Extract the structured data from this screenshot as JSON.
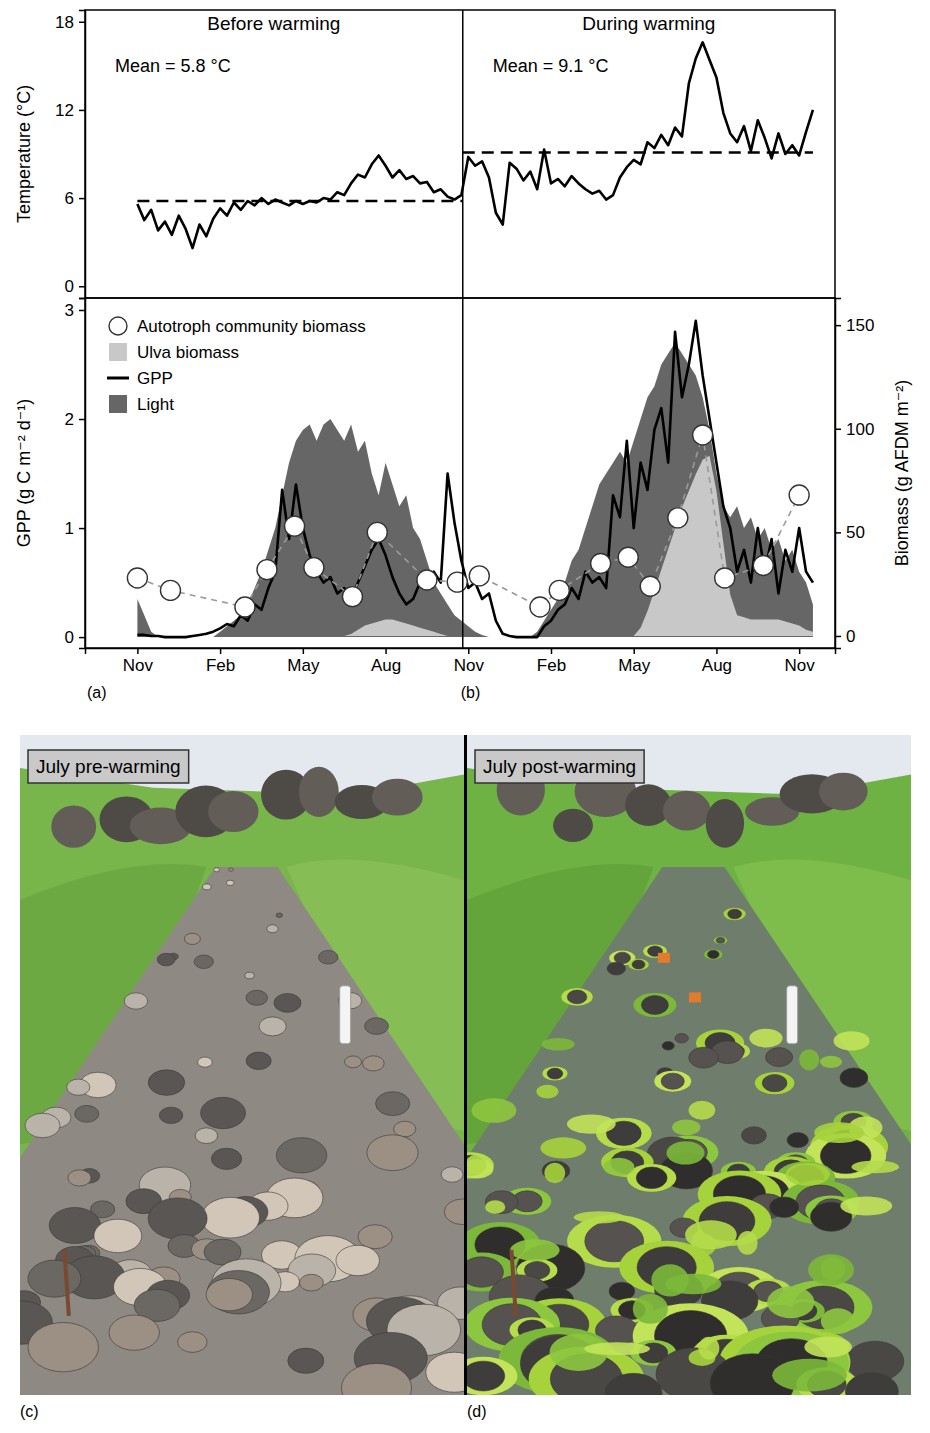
{
  "chart_data": [
    {
      "type": "line",
      "y_label": "Temperature (°C)",
      "tick_labels": "y",
      "x": [
        0,
        0.25,
        0.5,
        0.75,
        1,
        1.25,
        1.5,
        1.75,
        2,
        2.25,
        2.5,
        2.75,
        3,
        3.25,
        3.5,
        3.75,
        4,
        4.25,
        4.5,
        4.75,
        5,
        5.25,
        5.5,
        5.75,
        6,
        6.25,
        6.5,
        6.75,
        7,
        7.25,
        7.5,
        7.75,
        8,
        8.25,
        8.5,
        8.75,
        9,
        9.25,
        9.5,
        9.75,
        10,
        10.25,
        10.5,
        10.75,
        11,
        11.25,
        11.5,
        11.75,
        12,
        12.25,
        12.5,
        12.75,
        13,
        13.25,
        13.5,
        13.75,
        14,
        14.25,
        14.5,
        14.75,
        15,
        15.25,
        15.5,
        15.75,
        16,
        16.25,
        16.5,
        16.75,
        17,
        17.25,
        17.5,
        17.75,
        18,
        18.25,
        18.5,
        18.75,
        19,
        19.25,
        19.5,
        19.75,
        20,
        20.25,
        20.5,
        20.75,
        21,
        21.25,
        21.5,
        21.75,
        22,
        22.25,
        22.5,
        22.75,
        23,
        23.25,
        23.5,
        23.75,
        24,
        24.25,
        24.5
      ],
      "xlim": [
        -1.9,
        25.3
      ],
      "ylim": [
        -0.8,
        18.8
      ],
      "yticks": [
        0,
        6,
        12,
        18
      ],
      "warming_start": 11.8,
      "periods": [
        {
          "title": "Before warming",
          "mean_label": "Mean = 5.8 °C",
          "mean": 5.8,
          "x": [
            0,
            11.8
          ]
        },
        {
          "title": "During warming",
          "mean_label": "Mean = 9.1 °C",
          "mean": 9.1,
          "x": [
            11.8,
            24.5
          ]
        }
      ],
      "series": [
        {
          "color": "#000000",
          "values": [
            5.6,
            4.5,
            5.2,
            3.8,
            4.4,
            3.5,
            4.8,
            3.9,
            2.6,
            4.2,
            3.4,
            4.6,
            5.3,
            4.8,
            5.7,
            5.2,
            5.8,
            5.5,
            6.0,
            5.6,
            5.9,
            5.7,
            5.5,
            5.8,
            5.6,
            5.8,
            5.7,
            6.0,
            5.9,
            6.4,
            6.2,
            7.0,
            7.6,
            7.4,
            8.3,
            8.9,
            8.2,
            7.4,
            7.9,
            7.3,
            7.5,
            7.0,
            7.1,
            6.4,
            6.6,
            6.1,
            5.9,
            6.2,
            8.8,
            8.2,
            8.5,
            7.4,
            5.0,
            4.2,
            8.4,
            8.0,
            7.2,
            7.8,
            6.6,
            9.3,
            7.0,
            7.3,
            6.8,
            7.5,
            7.0,
            6.6,
            6.3,
            6.5,
            5.9,
            6.2,
            7.4,
            8.1,
            8.6,
            8.3,
            9.8,
            9.4,
            10.3,
            9.6,
            10.8,
            10.2,
            13.8,
            15.5,
            16.6,
            15.4,
            14.2,
            11.8,
            10.4,
            9.8,
            10.9,
            9.2,
            11.3,
            10.1,
            8.7,
            10.4,
            9.0,
            9.6,
            8.9,
            10.5,
            12.0
          ]
        }
      ]
    },
    {
      "type": "line",
      "y_label": "GPP (g C m⁻² d⁻¹)",
      "y2_label": "Biomass (g AFDM m⁻²)",
      "legend": "top-left",
      "panel_labels": [
        "(a)",
        "(b)"
      ],
      "x": [
        0,
        0.25,
        0.5,
        0.75,
        1,
        1.25,
        1.5,
        1.75,
        2,
        2.25,
        2.5,
        2.75,
        3,
        3.25,
        3.5,
        3.75,
        4,
        4.25,
        4.5,
        4.75,
        5,
        5.25,
        5.5,
        5.75,
        6,
        6.25,
        6.5,
        6.75,
        7,
        7.25,
        7.5,
        7.75,
        8,
        8.25,
        8.5,
        8.75,
        9,
        9.25,
        9.5,
        9.75,
        10,
        10.25,
        10.5,
        10.75,
        11,
        11.25,
        11.5,
        11.75,
        12,
        12.25,
        12.5,
        12.75,
        13,
        13.25,
        13.5,
        13.75,
        14,
        14.25,
        14.5,
        14.75,
        15,
        15.25,
        15.5,
        15.75,
        16,
        16.25,
        16.5,
        16.75,
        17,
        17.25,
        17.5,
        17.75,
        18,
        18.25,
        18.5,
        18.75,
        19,
        19.25,
        19.5,
        19.75,
        20,
        20.25,
        20.5,
        20.75,
        21,
        21.25,
        21.5,
        21.75,
        22,
        22.25,
        22.5,
        22.75,
        23,
        23.25,
        23.5,
        23.75,
        24,
        24.25,
        24.5
      ],
      "xlim": [
        -1.9,
        25.3
      ],
      "xticks": [
        {
          "value": 0,
          "label": "Nov"
        },
        {
          "value": 3,
          "label": "Feb"
        },
        {
          "value": 6,
          "label": "May"
        },
        {
          "value": 9,
          "label": "Aug"
        },
        {
          "value": 12,
          "label": "Nov"
        },
        {
          "value": 15,
          "label": "Feb"
        },
        {
          "value": 18,
          "label": "May"
        },
        {
          "value": 21,
          "label": "Aug"
        },
        {
          "value": 24,
          "label": "Nov"
        }
      ],
      "ylim": [
        -0.1,
        3.11
      ],
      "yticks": [
        0,
        1,
        2,
        3
      ],
      "y2lim": [
        -5.8,
        163.1
      ],
      "y2ticks": [
        0,
        50,
        100,
        150
      ],
      "series": [
        {
          "name": "Autotroph community biomass",
          "type": "scatter",
          "marker": "circle",
          "line_style": "dashed",
          "color": "#ffffff",
          "axis": "y2",
          "x": [
            0,
            1.2,
            3.9,
            4.7,
            5.7,
            6.4,
            7.8,
            8.7,
            10.5,
            11.6,
            12.4,
            14.6,
            15.3,
            16.8,
            17.8,
            18.6,
            19.6,
            20.5,
            21.3,
            22.7,
            24
          ],
          "values": [
            28,
            22,
            14,
            32,
            53,
            33,
            19,
            50,
            27,
            26,
            29,
            14,
            22,
            35,
            38,
            24,
            57,
            97,
            28,
            34,
            68
          ]
        },
        {
          "name": "Ulva biomass",
          "type": "area",
          "color": "#c8c8c8",
          "axis": "y2",
          "values": [
            0,
            0,
            0,
            0,
            0,
            0,
            0,
            0,
            0,
            0,
            0,
            0,
            0,
            0,
            0,
            0,
            0,
            0,
            0,
            0,
            0,
            0,
            0,
            0,
            0,
            0,
            0,
            0,
            0,
            0,
            0,
            1,
            3,
            5,
            6,
            7,
            8,
            8,
            7,
            6,
            5,
            4,
            3,
            2,
            1,
            0,
            0,
            0,
            0,
            0,
            0,
            0,
            0,
            0,
            0,
            0,
            0,
            0,
            0,
            0,
            0,
            0,
            0,
            0,
            0,
            0,
            0,
            0,
            0,
            0,
            0,
            0,
            0,
            4,
            12,
            22,
            32,
            42,
            52,
            62,
            70,
            78,
            85,
            87,
            70,
            45,
            20,
            10,
            9,
            8,
            8,
            8,
            8,
            8,
            7,
            6,
            5,
            3,
            2
          ]
        },
        {
          "name": "GPP",
          "type": "line",
          "color": "#000000",
          "values": [
            0.02,
            0.02,
            0.01,
            0.01,
            0,
            0,
            0,
            0,
            0.01,
            0.02,
            0.03,
            0.05,
            0.08,
            0.12,
            0.1,
            0.2,
            0.15,
            0.3,
            0.25,
            0.45,
            0.6,
            1.35,
            0.9,
            1.4,
            1.0,
            0.75,
            0.6,
            0.5,
            0.55,
            0.4,
            0.45,
            0.35,
            0.5,
            0.65,
            0.8,
            0.9,
            0.75,
            0.55,
            0.4,
            0.3,
            0.35,
            0.5,
            0.45,
            0.6,
            0.5,
            1.5,
            1.05,
            0.7,
            0.45,
            0.5,
            0.35,
            0.4,
            0.15,
            0.03,
            0.01,
            0,
            0,
            0,
            0,
            0.1,
            0.15,
            0.25,
            0.3,
            0.45,
            0.35,
            0.6,
            0.5,
            0.55,
            0.45,
            1.3,
            1.1,
            1.8,
            1.0,
            1.6,
            1.35,
            1.9,
            2.1,
            1.6,
            2.8,
            2.2,
            2.5,
            2.9,
            2.4,
            2.0,
            1.6,
            1.2,
            1.0,
            0.6,
            0.8,
            0.5,
            1.0,
            0.6,
            0.9,
            0.4,
            0.8,
            0.6,
            1.0,
            0.6,
            0.5
          ]
        },
        {
          "name": "Light",
          "type": "area",
          "color": "#666666",
          "values": [
            0.35,
            0.2,
            0.05,
            0,
            0,
            0,
            0,
            0,
            0,
            0,
            0,
            0,
            0.05,
            0.1,
            0.15,
            0.2,
            0.3,
            0.45,
            0.6,
            0.8,
            1.0,
            1.3,
            1.6,
            1.8,
            1.9,
            1.95,
            1.8,
            1.95,
            2.0,
            1.9,
            1.8,
            1.95,
            1.7,
            1.8,
            1.5,
            1.3,
            1.6,
            1.4,
            1.2,
            1.3,
            1.0,
            0.9,
            0.7,
            0.5,
            0.4,
            0.3,
            0.2,
            0.15,
            0.1,
            0.05,
            0.02,
            0,
            0,
            0,
            0,
            0,
            0,
            0,
            0.05,
            0.15,
            0.25,
            0.35,
            0.5,
            0.7,
            0.8,
            1.0,
            1.2,
            1.4,
            1.5,
            1.6,
            1.7,
            1.6,
            1.8,
            2.0,
            2.2,
            2.3,
            2.5,
            2.6,
            2.7,
            2.6,
            2.5,
            2.4,
            2.2,
            1.9,
            1.5,
            1.2,
            1.1,
            1.2,
            1.0,
            1.1,
            0.9,
            1.0,
            0.8,
            0.9,
            0.7,
            0.8,
            0.6,
            0.5,
            0.3
          ]
        }
      ]
    }
  ],
  "photos": [
    {
      "label": "July pre-warming",
      "letter": "(c)"
    },
    {
      "label": "July post-warming",
      "letter": "(d)"
    }
  ]
}
